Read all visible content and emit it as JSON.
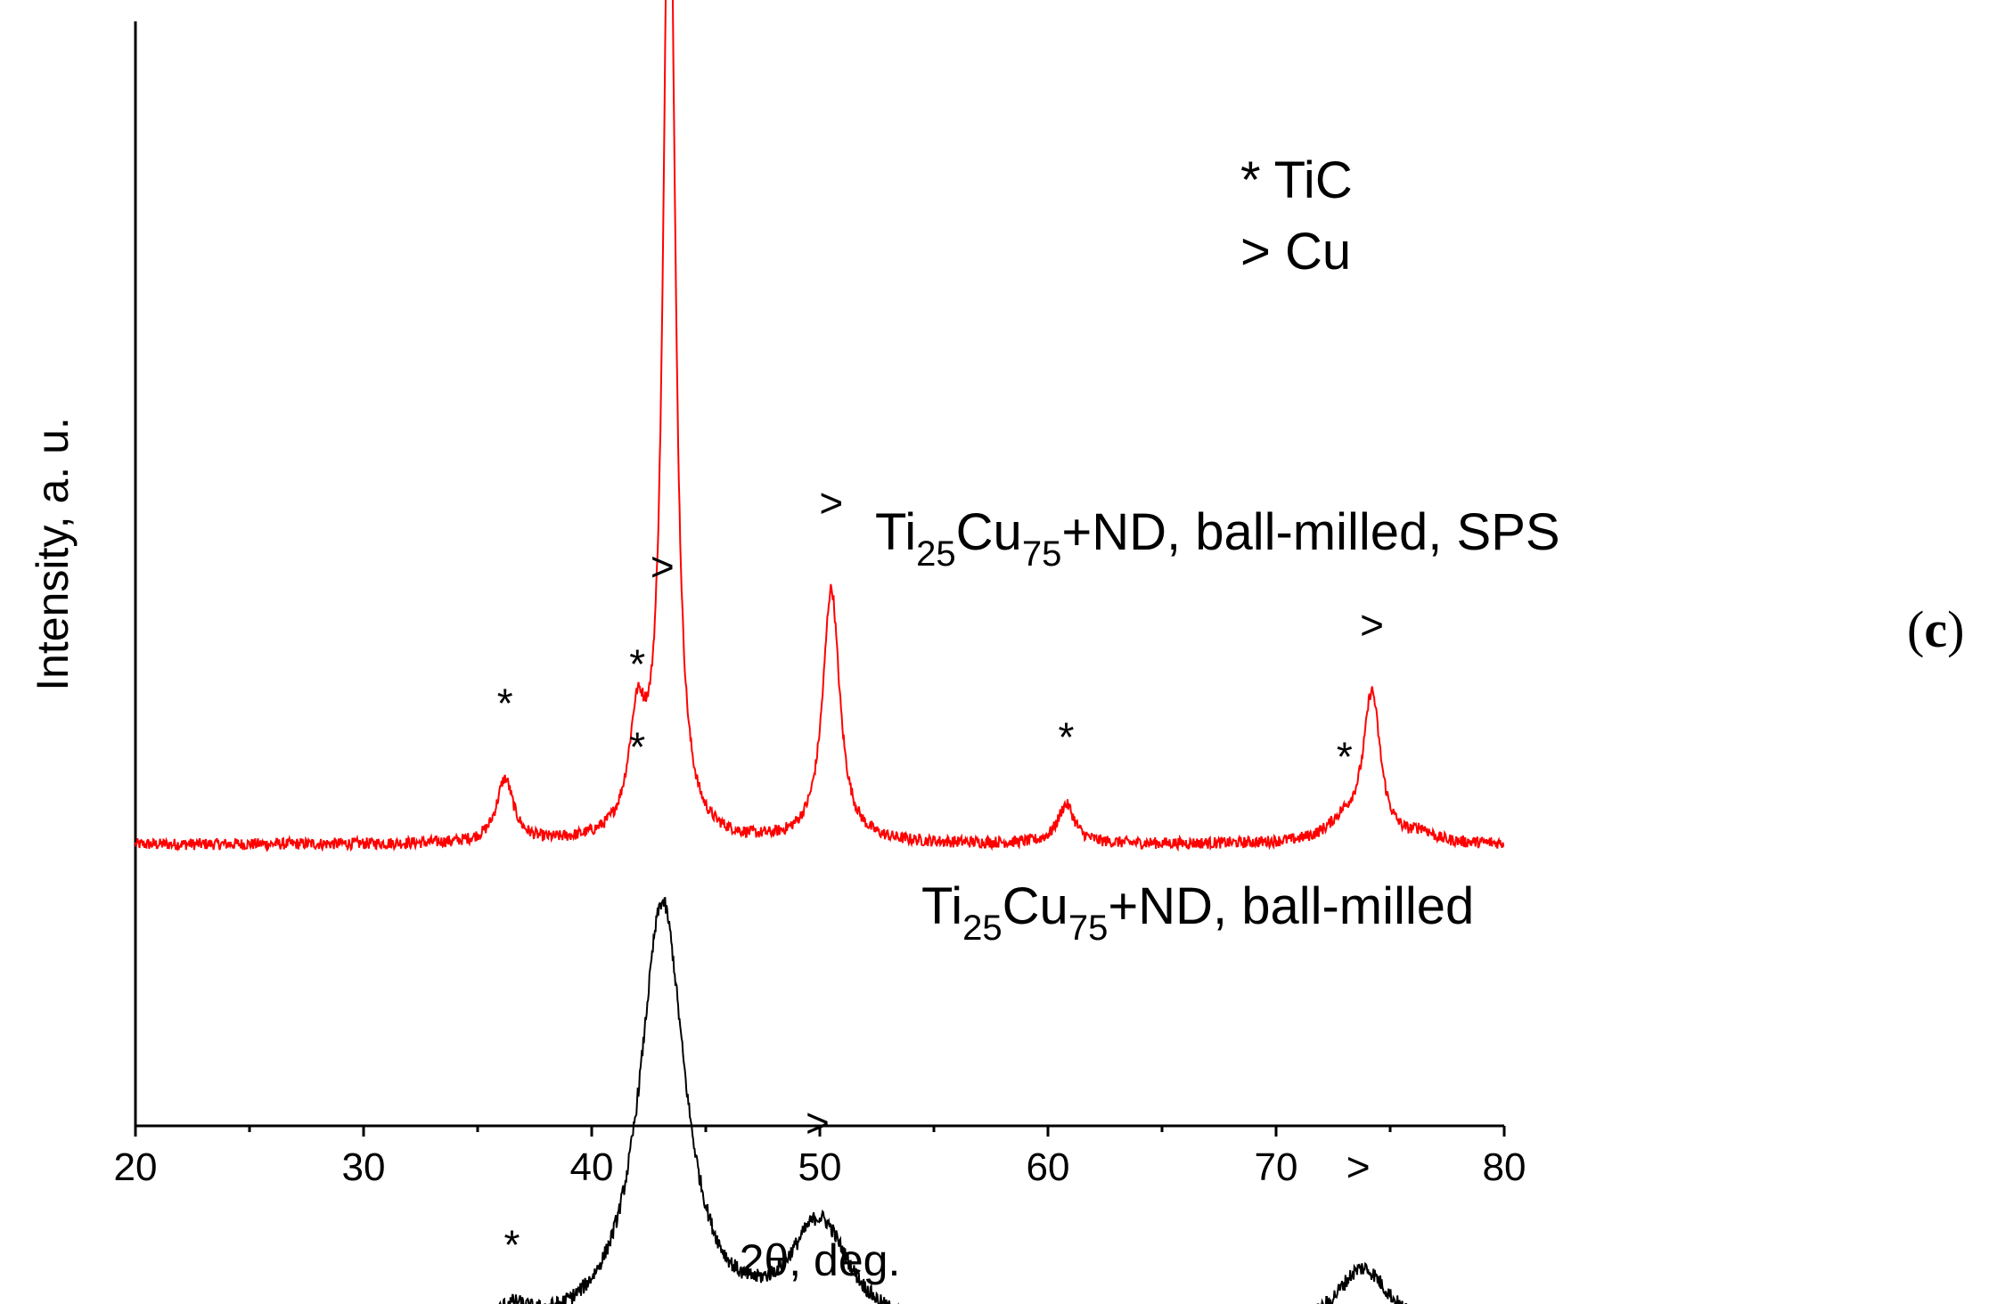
{
  "chart_data": {
    "type": "line",
    "xlabel": "2θ, deg.",
    "ylabel": "Intensity, a. u.",
    "xlim": [
      20,
      80
    ],
    "x_ticks": [
      "20",
      "30",
      "40",
      "50",
      "60",
      "70",
      "80"
    ],
    "grid": false,
    "panel_label": {
      "open": "(",
      "letter": "c",
      "close": ")"
    },
    "legend": [
      {
        "symbol": "*",
        "phase": "TiC"
      },
      {
        "symbol": ">",
        "phase": "Cu"
      }
    ],
    "series": [
      {
        "label_base1": "Ti",
        "label_sub1": "25",
        "label_base2": "Cu",
        "label_sub2": "75",
        "label_rest": "+ND, ball-milled, SPS",
        "color": "#ff0000",
        "baseline": 0.1,
        "peaks": [
          {
            "x": 36.2,
            "height": 0.13,
            "width": 0.45
          },
          {
            "x": 42.0,
            "height": 0.22,
            "width": 0.45
          },
          {
            "x": 43.4,
            "height": 2.18,
            "width": 0.3
          },
          {
            "x": 50.5,
            "height": 0.52,
            "width": 0.45
          },
          {
            "x": 60.8,
            "height": 0.08,
            "width": 0.45
          },
          {
            "x": 73.0,
            "height": 0.04,
            "width": 0.9
          },
          {
            "x": 74.2,
            "height": 0.3,
            "width": 0.45
          },
          {
            "x": 76.4,
            "height": 0.02,
            "width": 0.5
          }
        ],
        "markers": [
          {
            "x": 36.2,
            "symbol": "*",
            "y": 0.39
          },
          {
            "x": 42.0,
            "symbol": "*",
            "y": 0.47
          },
          {
            "x": 43.4,
            "symbol": ">",
            "y": 2.31
          },
          {
            "x": 50.5,
            "symbol": ">",
            "y": 0.8
          },
          {
            "x": 60.8,
            "symbol": "*",
            "y": 0.32
          },
          {
            "x": 73.0,
            "symbol": "*",
            "y": 0.28
          },
          {
            "x": 74.2,
            "symbol": ">",
            "y": 0.55
          }
        ]
      },
      {
        "label_base1": "Ti",
        "label_sub1": "25",
        "label_base2": "Cu",
        "label_sub2": "75",
        "label_rest": "+ND, ball-milled",
        "color": "#000000",
        "baseline": -0.91,
        "peaks": [
          {
            "x": 36.5,
            "height": 0.04,
            "width": 0.9
          },
          {
            "x": 43.1,
            "height": 0.88,
            "width": 1.2
          },
          {
            "x": 50.0,
            "height": 0.22,
            "width": 1.6
          },
          {
            "x": 73.8,
            "height": 0.14,
            "width": 1.5
          }
        ],
        "markers": [
          {
            "x": 36.5,
            "symbol": "*",
            "y": -0.72
          },
          {
            "x": 42.0,
            "symbol": "*",
            "y": 0.3
          },
          {
            "x": 43.1,
            "symbol": ">",
            "y": 0.67
          },
          {
            "x": 49.9,
            "symbol": ">",
            "y": -0.47
          },
          {
            "x": 73.6,
            "symbol": ">",
            "y": -0.56
          }
        ]
      }
    ]
  }
}
